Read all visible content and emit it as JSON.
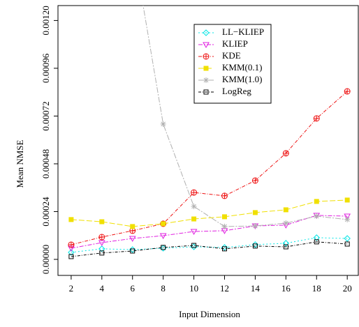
{
  "chart_data": {
    "type": "line",
    "xlabel": "Input Dimension",
    "ylabel": "Mean NMSE",
    "x": [
      2,
      4,
      6,
      8,
      10,
      12,
      14,
      16,
      18,
      20
    ],
    "xlim": [
      1.14,
      20.72
    ],
    "xticks": [
      2,
      4,
      6,
      8,
      10,
      12,
      14,
      16,
      18,
      20
    ],
    "ylim": [
      -8.06e-05,
      0.001275
    ],
    "yticks": [
      {
        "value": 0,
        "label": "0.00000"
      },
      {
        "value": 0.00024,
        "label": "0.00024"
      },
      {
        "value": 0.00048,
        "label": "0.00048"
      },
      {
        "value": 0.00072,
        "label": "0.00072"
      },
      {
        "value": 0.00096,
        "label": "0.00096"
      },
      {
        "value": 0.0012,
        "label": "0.00120"
      }
    ],
    "legend": "top-right",
    "series": [
      {
        "name": "LL−KLIEP",
        "color": "#00e5e5",
        "marker": "diamond",
        "dash": "2,3",
        "values": [
          3.5e-05,
          5.3e-05,
          4.9e-05,
          5.6e-05,
          6.3e-05,
          6e-05,
          7.4e-05,
          8.1e-05,
          0.000109,
          0.000105
        ]
      },
      {
        "name": "KLIEP",
        "color": "#e020e0",
        "marker": "triangle-down",
        "dash": "6,2,2,2",
        "values": [
          5.6e-05,
          8.4e-05,
          0.000105,
          0.000119,
          0.00014,
          0.000144,
          0.000168,
          0.000172,
          0.000221,
          0.000217
        ]
      },
      {
        "name": "KDE",
        "color": "#ee1111",
        "marker": "circle-plus",
        "dash": "5,2,1,2",
        "values": [
          7.36e-05,
          0.000112,
          0.000144,
          0.000179,
          0.000336,
          0.000319,
          0.000396,
          0.000533,
          0.000708,
          0.000844
        ]
      },
      {
        "name": "KMM(0.1)",
        "color": "#f0e000",
        "marker": "square-filled",
        "dash": "8,3",
        "values": [
          0.0002,
          0.000189,
          0.000165,
          0.000179,
          0.000203,
          0.000214,
          0.000235,
          0.000249,
          0.000291,
          0.000298
        ]
      },
      {
        "name": "KMM(1.0)",
        "color": "#b0b0b0",
        "marker": "asterisk",
        "dash": "8,2,2,2",
        "values": [
          null,
          null,
          0.00159,
          0.00068,
          0.000266,
          0.000165,
          0.000168,
          0.000182,
          0.000217,
          0.0002
        ]
      },
      {
        "name": "LogReg",
        "color": "#000000",
        "marker": "square",
        "dash": "4,2,1,2",
        "values": [
          1.4e-05,
          3.2e-05,
          4.2e-05,
          6e-05,
          7e-05,
          5.3e-05,
          6.7e-05,
          6.3e-05,
          8.8e-05,
          7.7e-05
        ]
      }
    ]
  }
}
